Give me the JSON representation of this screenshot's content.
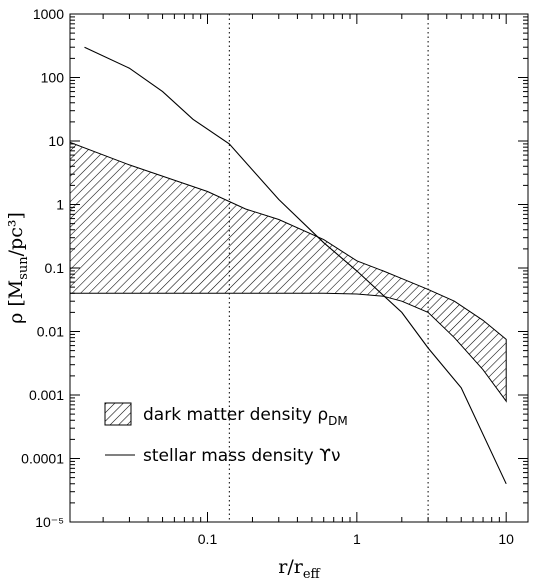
{
  "chart_data": {
    "type": "line",
    "xscale": "log",
    "yscale": "log",
    "xlim": [
      0.012,
      14
    ],
    "ylim": [
      1e-05,
      1000
    ],
    "x_ticks": [
      {
        "value": 0.1,
        "label": "0.1"
      },
      {
        "value": 1,
        "label": "1"
      },
      {
        "value": 10,
        "label": "10"
      }
    ],
    "y_ticks": [
      {
        "value": 1e-05,
        "label": "10⁻⁵"
      },
      {
        "value": 0.0001,
        "label": "0.0001"
      },
      {
        "value": 0.001,
        "label": "0.001"
      },
      {
        "value": 0.01,
        "label": "0.01"
      },
      {
        "value": 0.1,
        "label": "0.1"
      },
      {
        "value": 1,
        "label": "1"
      },
      {
        "value": 10,
        "label": "10"
      },
      {
        "value": 100,
        "label": "100"
      },
      {
        "value": 1000,
        "label": "1000"
      }
    ],
    "xlabel": "r/r_eff",
    "ylabel": "ρ [M_sun/pc³]",
    "vertical_lines": [
      0.14,
      3.0
    ],
    "grid": false,
    "legend_position": "bottom-left",
    "series": [
      {
        "name": "stellar mass density ϒν",
        "style": "line",
        "x": [
          0.015,
          0.03,
          0.05,
          0.08,
          0.14,
          0.3,
          0.6,
          1.0,
          2.0,
          3.0,
          5.0,
          10.0
        ],
        "y": [
          300,
          140,
          60,
          22,
          9,
          1.2,
          0.25,
          0.09,
          0.02,
          0.0055,
          0.0013,
          4e-05
        ]
      },
      {
        "name": "dark matter density ρ_DM",
        "style": "hatched-band",
        "x": [
          0.012,
          0.03,
          0.1,
          0.18,
          0.3,
          0.6,
          1.0,
          1.5,
          2.0,
          3.0,
          4.5,
          7.0,
          10.0
        ],
        "upper": [
          9.5,
          4.2,
          1.6,
          0.85,
          0.58,
          0.28,
          0.13,
          0.09,
          0.068,
          0.046,
          0.03,
          0.015,
          0.0075
        ],
        "lower": [
          0.04,
          0.04,
          0.04,
          0.04,
          0.04,
          0.04,
          0.039,
          0.036,
          0.03,
          0.02,
          0.008,
          0.0025,
          0.0008
        ]
      }
    ]
  }
}
